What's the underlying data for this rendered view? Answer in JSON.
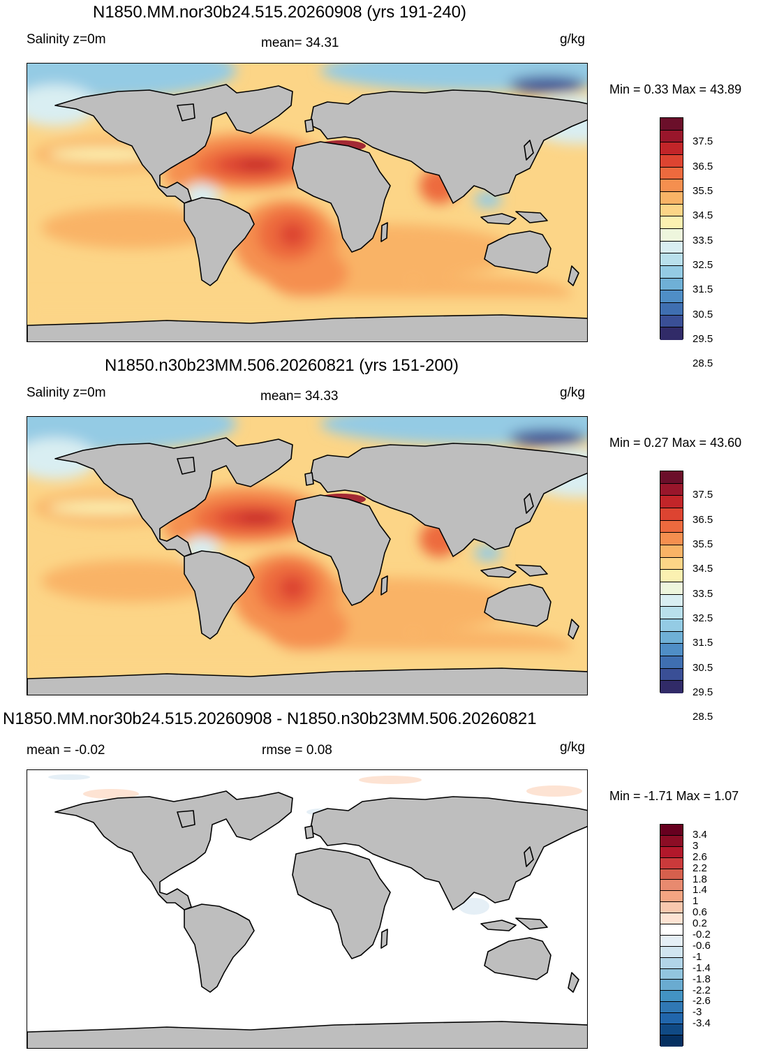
{
  "panels": [
    {
      "title": "N1850.MM.nor30b24.515.20260908 (yrs 191-240)",
      "left_label": "Salinity z=0m",
      "center_label": "mean=  34.31",
      "units": "g/kg",
      "minmax": "Min =   0.33 Max =  43.89",
      "colorbar": {
        "colors": [
          "#6b0f2a",
          "#99162b",
          "#c22529",
          "#dd4431",
          "#ed6a3e",
          "#f58f4f",
          "#f9b366",
          "#fcd587",
          "#fbf1b1",
          "#eef6dd",
          "#d9eef2",
          "#b9e0ec",
          "#94cbe4",
          "#6fb0d6",
          "#4f8ec6",
          "#3f6fb1",
          "#3a4f96",
          "#312b68"
        ],
        "ticks": [
          "37.5",
          "36.5",
          "35.5",
          "34.5",
          "33.5",
          "32.5",
          "31.5",
          "30.5",
          "29.5",
          "28.5"
        ]
      }
    },
    {
      "title": "N1850.n30b23MM.506.20260821 (yrs 151-200)",
      "left_label": "Salinity z=0m",
      "center_label": "mean=  34.33",
      "units": "g/kg",
      "minmax": "Min =   0.27 Max =  43.60",
      "colorbar": {
        "colors": [
          "#6b0f2a",
          "#99162b",
          "#c22529",
          "#dd4431",
          "#ed6a3e",
          "#f58f4f",
          "#f9b366",
          "#fcd587",
          "#fbf1b1",
          "#eef6dd",
          "#d9eef2",
          "#b9e0ec",
          "#94cbe4",
          "#6fb0d6",
          "#4f8ec6",
          "#3f6fb1",
          "#3a4f96",
          "#312b68"
        ],
        "ticks": [
          "37.5",
          "36.5",
          "35.5",
          "34.5",
          "33.5",
          "32.5",
          "31.5",
          "30.5",
          "29.5",
          "28.5"
        ]
      }
    },
    {
      "title": "N1850.MM.nor30b24.515.20260908 - N1850.n30b23MM.506.20260821",
      "left_label": "mean =  -0.02",
      "center_label": "rmse =    0.08",
      "units": "g/kg",
      "minmax": "Min =  -1.71 Max =   1.07",
      "colorbar": {
        "colors": [
          "#67001f",
          "#8c0d25",
          "#b2182b",
          "#cb3a3b",
          "#d6604d",
          "#e88a6f",
          "#f4a582",
          "#f8c8ae",
          "#fde3d3",
          "#ffffff",
          "#e5eff6",
          "#d1e5f0",
          "#b2d5e8",
          "#92c5de",
          "#6aabd0",
          "#4393c3",
          "#3078b4",
          "#2166ac",
          "#104a85",
          "#053061"
        ],
        "ticks": [
          "3.4",
          "3",
          "2.6",
          "2.2",
          "1.8",
          "1.4",
          "1",
          "0.6",
          "0.2",
          "-0.2",
          "-0.6",
          "-1",
          "-1.4",
          "-1.8",
          "-2.2",
          "-2.6",
          "-3",
          "-3.4"
        ]
      }
    }
  ]
}
